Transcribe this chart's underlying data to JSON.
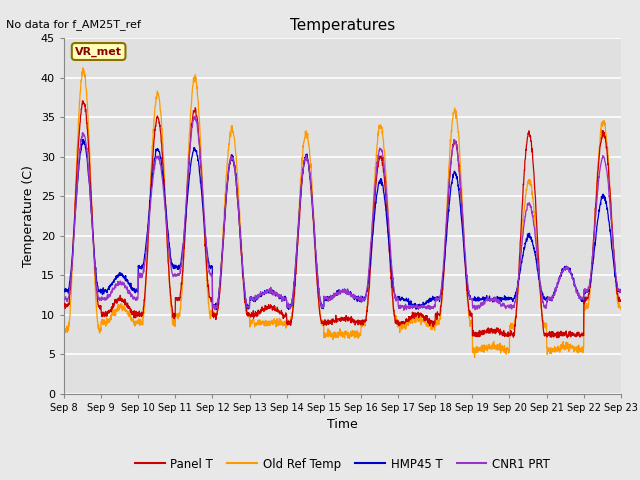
{
  "title": "Temperatures",
  "xlabel": "Time",
  "ylabel": "Temperature (C)",
  "note": "No data for f_AM25T_ref",
  "vr_met_label": "VR_met",
  "ylim": [
    0,
    45
  ],
  "yticks": [
    0,
    5,
    10,
    15,
    20,
    25,
    30,
    35,
    40,
    45
  ],
  "x_labels": [
    "Sep 8",
    "Sep 9",
    "Sep 10",
    "Sep 11",
    "Sep 12",
    "Sep 13",
    "Sep 14",
    "Sep 15",
    "Sep 16",
    "Sep 17",
    "Sep 18",
    "Sep 19",
    "Sep 20",
    "Sep 21",
    "Sep 22",
    "Sep 23"
  ],
  "legend": [
    {
      "label": "Panel T",
      "color": "#CC0000"
    },
    {
      "label": "Old Ref Temp",
      "color": "#FF9900"
    },
    {
      "label": "HMP45 T",
      "color": "#0000CC"
    },
    {
      "label": "CNR1 PRT",
      "color": "#9933CC"
    }
  ],
  "background_color": "#E8E8E8",
  "plot_bg_color": "#E0E0E0",
  "grid_color": "#FFFFFF",
  "num_days": 15,
  "panel_peaks": [
    37,
    12,
    35,
    36,
    30,
    11,
    30,
    9.5,
    30,
    10,
    32,
    8,
    33,
    7.5,
    33
  ],
  "panel_mins": [
    11,
    10,
    10,
    12,
    10,
    10,
    9,
    9,
    9,
    9,
    10,
    7.5,
    7.5,
    7.5,
    12
  ],
  "old_ref_peaks": [
    41,
    11,
    38,
    40,
    33.5,
    9,
    33,
    7.5,
    34,
    9.5,
    36,
    6,
    27,
    6,
    34.5
  ],
  "old_ref_mins": [
    8,
    9,
    9,
    10,
    10,
    9,
    9,
    7.5,
    9,
    8.5,
    9,
    5.5,
    8.5,
    5.5,
    11
  ],
  "hmp45_peaks": [
    32,
    15,
    31,
    31,
    30,
    13,
    30,
    13,
    27,
    11,
    28,
    12,
    20,
    16,
    25
  ],
  "hmp45_mins": [
    13,
    13,
    16,
    16,
    11,
    12,
    11,
    12,
    12,
    12,
    12,
    12,
    12,
    12,
    13
  ],
  "cnr1_peaks": [
    33,
    14,
    30,
    35,
    30,
    13,
    30,
    13,
    31,
    11,
    32,
    12,
    24,
    16,
    30
  ],
  "cnr1_mins": [
    12,
    12,
    15,
    15,
    11,
    12,
    11,
    12,
    12,
    11,
    12,
    11,
    11,
    12,
    13
  ],
  "figsize": [
    6.4,
    4.8
  ],
  "dpi": 100
}
